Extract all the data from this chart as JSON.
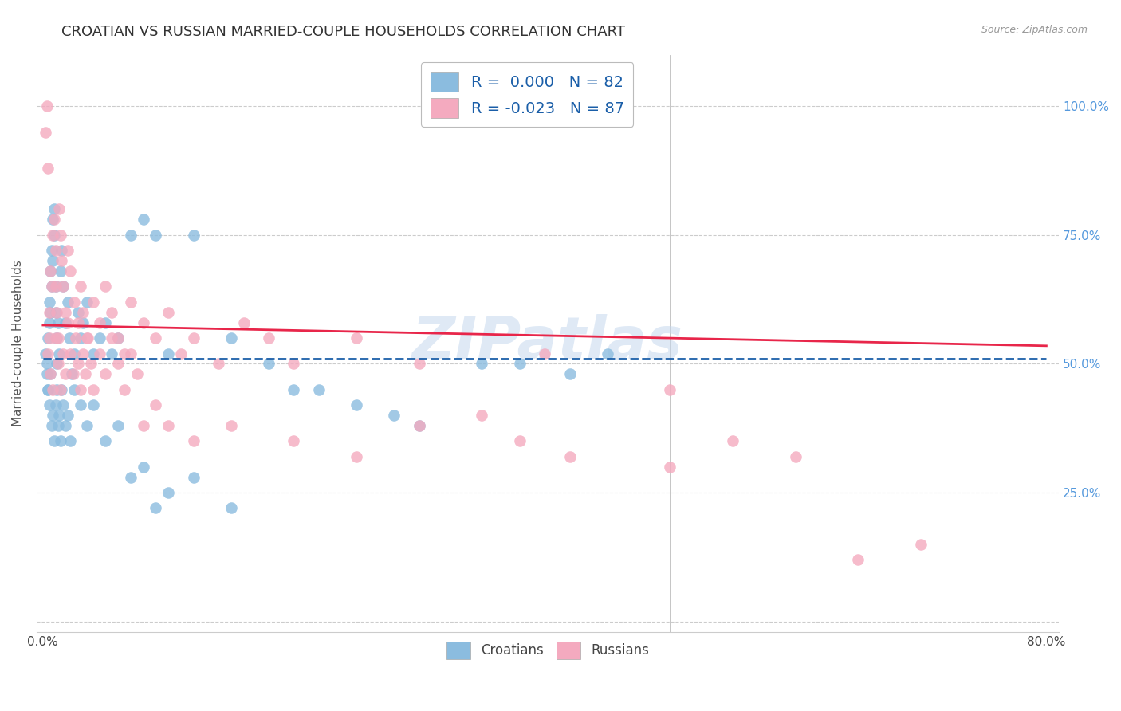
{
  "title": "CROATIAN VS RUSSIAN MARRIED-COUPLE HOUSEHOLDS CORRELATION CHART",
  "source": "Source: ZipAtlas.com",
  "ylabel": "Married-couple Households",
  "R_croatians": 0.0,
  "N_croatians": 82,
  "R_russians": -0.023,
  "N_russians": 87,
  "color_croatians": "#8BBCDF",
  "color_russians": "#F4AABF",
  "line_color_croatians": "#1A5EA8",
  "line_color_russians": "#E8264A",
  "watermark": "ZIPatlas",
  "background_color": "#FFFFFF",
  "title_fontsize": 13,
  "axis_label_fontsize": 11,
  "tick_fontsize": 11,
  "ytick_values": [
    0,
    0.25,
    0.5,
    0.75,
    1.0
  ],
  "ytick_labels": [
    "",
    "25.0%",
    "50.0%",
    "75.0%",
    "100.0%"
  ],
  "cr_x": [
    0.2,
    0.3,
    0.3,
    0.4,
    0.4,
    0.5,
    0.5,
    0.6,
    0.6,
    0.7,
    0.7,
    0.8,
    0.8,
    0.9,
    0.9,
    1.0,
    1.0,
    1.1,
    1.1,
    1.2,
    1.3,
    1.4,
    1.5,
    1.6,
    1.8,
    2.0,
    2.1,
    2.3,
    2.5,
    2.8,
    3.0,
    3.2,
    3.5,
    4.0,
    4.5,
    5.0,
    5.5,
    6.0,
    7.0,
    8.0,
    9.0,
    10.0,
    12.0,
    15.0,
    18.0,
    22.0,
    28.0,
    35.0,
    0.4,
    0.5,
    0.6,
    0.7,
    0.8,
    0.9,
    1.0,
    1.1,
    1.2,
    1.3,
    1.4,
    1.5,
    1.6,
    1.8,
    2.0,
    2.2,
    2.5,
    3.0,
    3.5,
    4.0,
    5.0,
    6.0,
    7.0,
    8.0,
    9.0,
    10.0,
    12.0,
    15.0,
    20.0,
    25.0,
    30.0,
    38.0,
    42.0,
    45.0
  ],
  "cr_y": [
    0.52,
    0.5,
    0.48,
    0.55,
    0.45,
    0.62,
    0.58,
    0.68,
    0.6,
    0.72,
    0.65,
    0.78,
    0.7,
    0.8,
    0.75,
    0.65,
    0.6,
    0.55,
    0.5,
    0.58,
    0.52,
    0.68,
    0.72,
    0.65,
    0.58,
    0.62,
    0.55,
    0.48,
    0.52,
    0.6,
    0.55,
    0.58,
    0.62,
    0.52,
    0.55,
    0.58,
    0.52,
    0.55,
    0.75,
    0.78,
    0.75,
    0.52,
    0.75,
    0.55,
    0.5,
    0.45,
    0.4,
    0.5,
    0.45,
    0.42,
    0.48,
    0.38,
    0.4,
    0.35,
    0.42,
    0.45,
    0.38,
    0.4,
    0.35,
    0.45,
    0.42,
    0.38,
    0.4,
    0.35,
    0.45,
    0.42,
    0.38,
    0.42,
    0.35,
    0.38,
    0.28,
    0.3,
    0.22,
    0.25,
    0.28,
    0.22,
    0.45,
    0.42,
    0.38,
    0.5,
    0.48,
    0.52
  ],
  "ru_x": [
    0.2,
    0.3,
    0.4,
    0.5,
    0.5,
    0.6,
    0.7,
    0.8,
    0.9,
    1.0,
    1.0,
    1.1,
    1.2,
    1.3,
    1.4,
    1.5,
    1.6,
    1.8,
    2.0,
    2.2,
    2.5,
    2.8,
    3.0,
    3.2,
    3.5,
    4.0,
    4.5,
    5.0,
    5.5,
    6.0,
    6.5,
    7.0,
    8.0,
    9.0,
    10.0,
    11.0,
    12.0,
    14.0,
    16.0,
    18.0,
    20.0,
    25.0,
    30.0,
    35.0,
    40.0,
    50.0,
    65.0,
    0.4,
    0.6,
    0.8,
    1.0,
    1.2,
    1.4,
    1.6,
    1.8,
    2.0,
    2.2,
    2.4,
    2.6,
    2.8,
    3.0,
    3.2,
    3.4,
    3.6,
    3.8,
    4.0,
    4.5,
    5.0,
    5.5,
    6.0,
    6.5,
    7.0,
    7.5,
    8.0,
    9.0,
    10.0,
    12.0,
    15.0,
    20.0,
    25.0,
    30.0,
    38.0,
    42.0,
    50.0,
    55.0,
    60.0,
    70.0
  ],
  "ru_y": [
    0.95,
    1.0,
    0.88,
    0.6,
    0.55,
    0.68,
    0.65,
    0.75,
    0.78,
    0.72,
    0.65,
    0.6,
    0.55,
    0.8,
    0.75,
    0.7,
    0.65,
    0.6,
    0.72,
    0.68,
    0.62,
    0.58,
    0.65,
    0.6,
    0.55,
    0.62,
    0.58,
    0.65,
    0.6,
    0.55,
    0.52,
    0.62,
    0.58,
    0.55,
    0.6,
    0.52,
    0.55,
    0.5,
    0.58,
    0.55,
    0.5,
    0.55,
    0.5,
    0.4,
    0.52,
    0.45,
    0.12,
    0.52,
    0.48,
    0.45,
    0.55,
    0.5,
    0.45,
    0.52,
    0.48,
    0.58,
    0.52,
    0.48,
    0.55,
    0.5,
    0.45,
    0.52,
    0.48,
    0.55,
    0.5,
    0.45,
    0.52,
    0.48,
    0.55,
    0.5,
    0.45,
    0.52,
    0.48,
    0.38,
    0.42,
    0.38,
    0.35,
    0.38,
    0.35,
    0.32,
    0.38,
    0.35,
    0.32,
    0.3,
    0.35,
    0.32,
    0.15
  ]
}
